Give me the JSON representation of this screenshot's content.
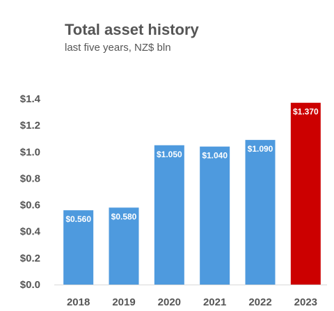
{
  "chart_data": {
    "type": "bar",
    "title": "Total asset history",
    "subtitle": "last five years, NZ$ bln",
    "xlabel": "",
    "ylabel": "",
    "categories": [
      "2018",
      "2019",
      "2020",
      "2021",
      "2022",
      "2023"
    ],
    "values": [
      0.56,
      0.58,
      1.05,
      1.04,
      1.09,
      1.37
    ],
    "data_labels": [
      "$0.560",
      "$0.580",
      "$1.050",
      "$1.040",
      "$1.090",
      "$1.370"
    ],
    "bar_colors": [
      "#4E9ADE",
      "#4E9ADE",
      "#4E9ADE",
      "#4E9ADE",
      "#4E9ADE",
      "#CC0000"
    ],
    "ylim": [
      0,
      1.4
    ],
    "y_ticks": [
      0,
      0.2,
      0.4,
      0.6,
      0.8,
      1.0,
      1.2,
      1.4
    ],
    "y_tick_labels": [
      "$0.0",
      "$0.2",
      "$0.4",
      "$0.6",
      "$0.8",
      "$1.0",
      "$1.2",
      "$1.4"
    ],
    "grid": false,
    "legend": "none"
  }
}
